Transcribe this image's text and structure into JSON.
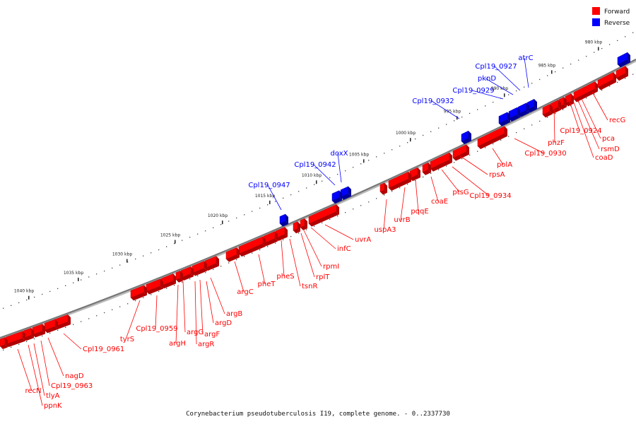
{
  "caption": "Corynebacterium pseudotuberculosis I19, complete genome. - 0..2337730",
  "legend": [
    {
      "label": "Forward",
      "color": "#ff0000"
    },
    {
      "label": "Reverse",
      "color": "#0000ff"
    }
  ],
  "colors": {
    "forward": "#ff0000",
    "forward_dark": "#b00000",
    "reverse": "#0000ff",
    "reverse_dark": "#00009a",
    "backbone": "#777777"
  },
  "ticks": [
    "980 kbp",
    "985 kbp",
    "990 kbp",
    "995 kbp",
    "1000 kbp",
    "1005 kbp",
    "1010 kbp",
    "1015 kbp",
    "1020 kbp",
    "1025 kbp",
    "1030 kbp",
    "1035 kbp",
    "1040 kbp"
  ],
  "forward_labels": [
    "recG",
    "pca",
    "Cpl19_0924",
    "rsmD",
    "coaD",
    "phzF",
    "Cpl19_0930",
    "polA",
    "rpsA",
    "Cpl19_0934",
    "ptsG",
    "coaE",
    "pqqE",
    "uvrB",
    "uspA3",
    "uvrA",
    "infC",
    "rpmI",
    "rplT",
    "tsnR",
    "pheS",
    "pheT",
    "argC",
    "argB",
    "argD",
    "argF",
    "argR",
    "argG",
    "argH",
    "Cpl19_0959",
    "tyrS",
    "Cpl19_0961",
    "nagD",
    "Cpl19_0963",
    "tlyA",
    "ppnK",
    "recN"
  ],
  "reverse_labels": [
    "atrC",
    "Cpl19_0927",
    "pknD",
    "Cpl19_0929",
    "Cpl19_0932",
    "doxX",
    "Cpl19_0942",
    "Cpl19_0947"
  ]
}
